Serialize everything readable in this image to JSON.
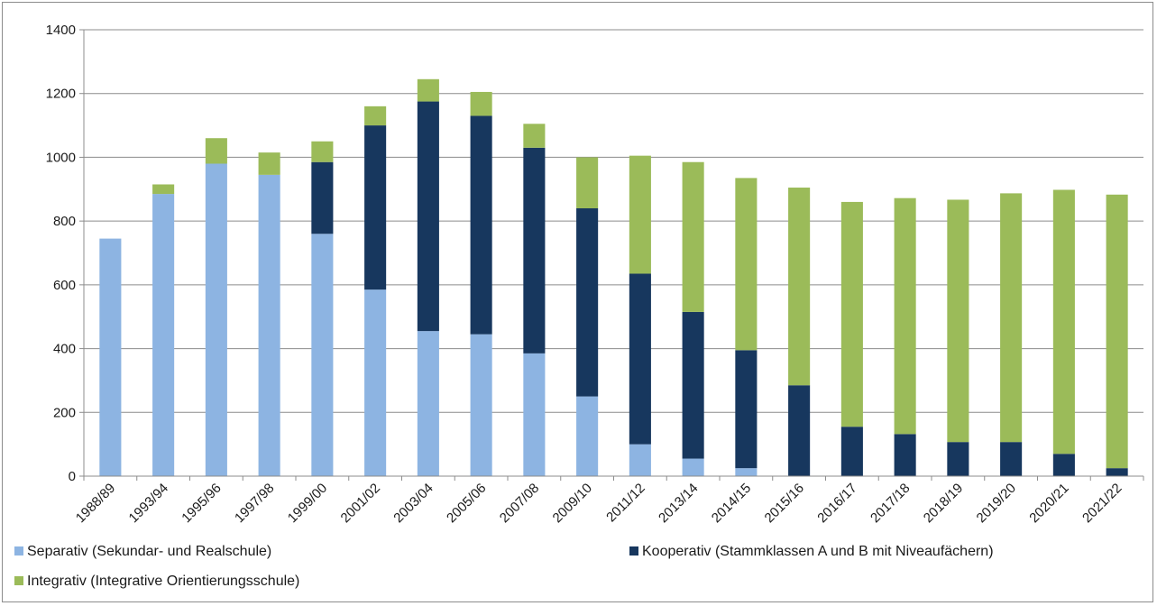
{
  "chart_data": {
    "type": "bar",
    "stacked": true,
    "categories": [
      "1988/89",
      "1993/94",
      "1995/96",
      "1997/98",
      "1999/00",
      "2001/02",
      "2003/04",
      "2005/06",
      "2007/08",
      "2009/10",
      "2011/12",
      "2013/14",
      "2014/15",
      "2015/16",
      "2016/17",
      "2017/18",
      "2018/19",
      "2019/20",
      "2020/21",
      "2021/22"
    ],
    "series": [
      {
        "name": "Separativ (Sekundar- und Realschule)",
        "color": "#8db4e2",
        "values": [
          745,
          885,
          980,
          945,
          760,
          585,
          455,
          445,
          385,
          250,
          100,
          55,
          25,
          0,
          0,
          0,
          0,
          0,
          0,
          0
        ]
      },
      {
        "name": "Kooperativ (Stammklassen A und B mit Niveaufächern)",
        "color": "#17375e",
        "values": [
          0,
          0,
          0,
          0,
          225,
          515,
          720,
          685,
          645,
          590,
          535,
          460,
          370,
          285,
          155,
          132,
          107,
          107,
          70,
          25
        ]
      },
      {
        "name": "Integrativ (Integrative Orientierungsschule)",
        "color": "#9bbb59",
        "values": [
          0,
          30,
          80,
          70,
          65,
          60,
          70,
          75,
          75,
          160,
          370,
          470,
          540,
          620,
          705,
          740,
          760,
          780,
          828,
          858
        ]
      }
    ],
    "y_ticks": [
      "0",
      "200",
      "400",
      "600",
      "800",
      "1000",
      "1200",
      "1400"
    ],
    "ylim": [
      0,
      1400
    ],
    "grid": true,
    "legend_placement": "bottom"
  }
}
